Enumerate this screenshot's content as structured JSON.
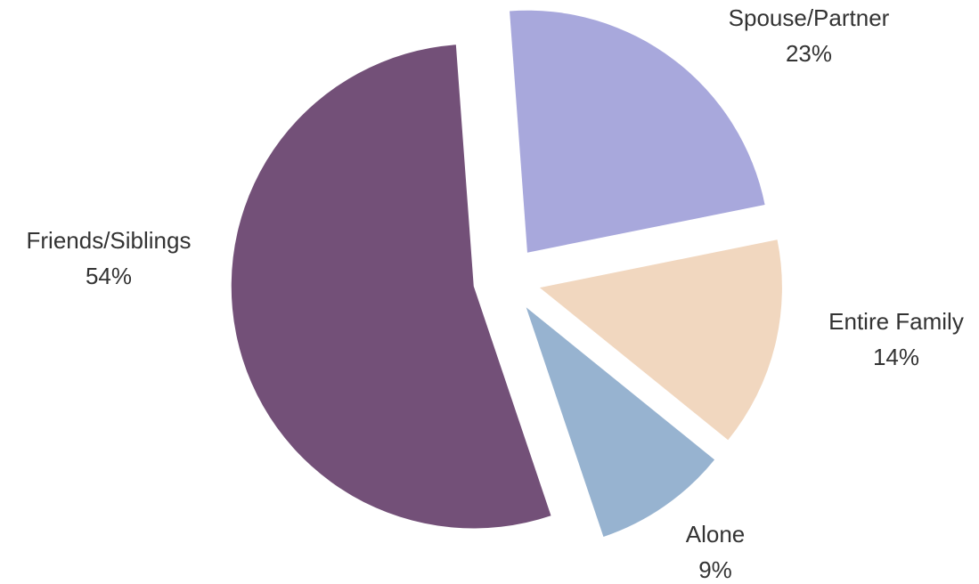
{
  "chart_data": {
    "type": "pie",
    "categories": [
      "Spouse/Partner",
      "Entire Family",
      "Alone",
      "Friends/Siblings"
    ],
    "values": [
      23,
      14,
      9,
      54
    ],
    "value_labels": [
      "23%",
      "14%",
      "9%",
      "54%"
    ],
    "colors": [
      "#a8a8dc",
      "#f1d7bf",
      "#97b3d0",
      "#735078"
    ]
  }
}
